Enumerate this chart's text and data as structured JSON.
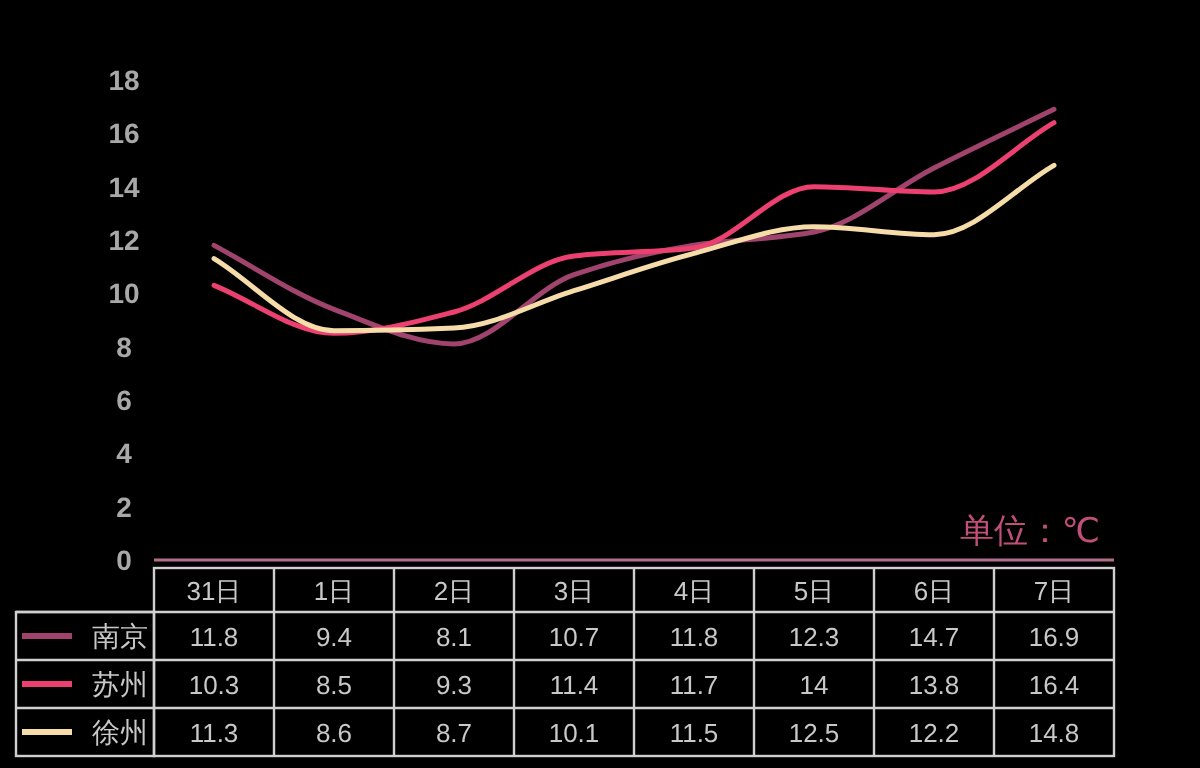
{
  "chart_data": {
    "type": "line",
    "categories": [
      "31日",
      "1日",
      "2日",
      "3日",
      "4日",
      "5日",
      "6日",
      "7日"
    ],
    "series": [
      {
        "name": "南京",
        "color": "#a0446e",
        "values": [
          11.8,
          9.4,
          8.1,
          10.7,
          11.8,
          12.3,
          14.7,
          16.9
        ]
      },
      {
        "name": "苏州",
        "color": "#ec4070",
        "values": [
          10.3,
          8.5,
          9.3,
          11.4,
          11.7,
          14,
          13.8,
          16.4
        ]
      },
      {
        "name": "徐州",
        "color": "#f5dca8",
        "values": [
          11.3,
          8.6,
          8.7,
          10.1,
          11.5,
          12.5,
          12.2,
          14.8
        ]
      }
    ],
    "ylim": [
      0,
      18
    ],
    "yticks": [
      0,
      2,
      4,
      6,
      8,
      10,
      12,
      14,
      16,
      18
    ],
    "annotations": [
      "单位：℃"
    ],
    "data_labels": true,
    "grid": false,
    "legend": "bottom",
    "marker": "none",
    "line_style": "solid"
  }
}
